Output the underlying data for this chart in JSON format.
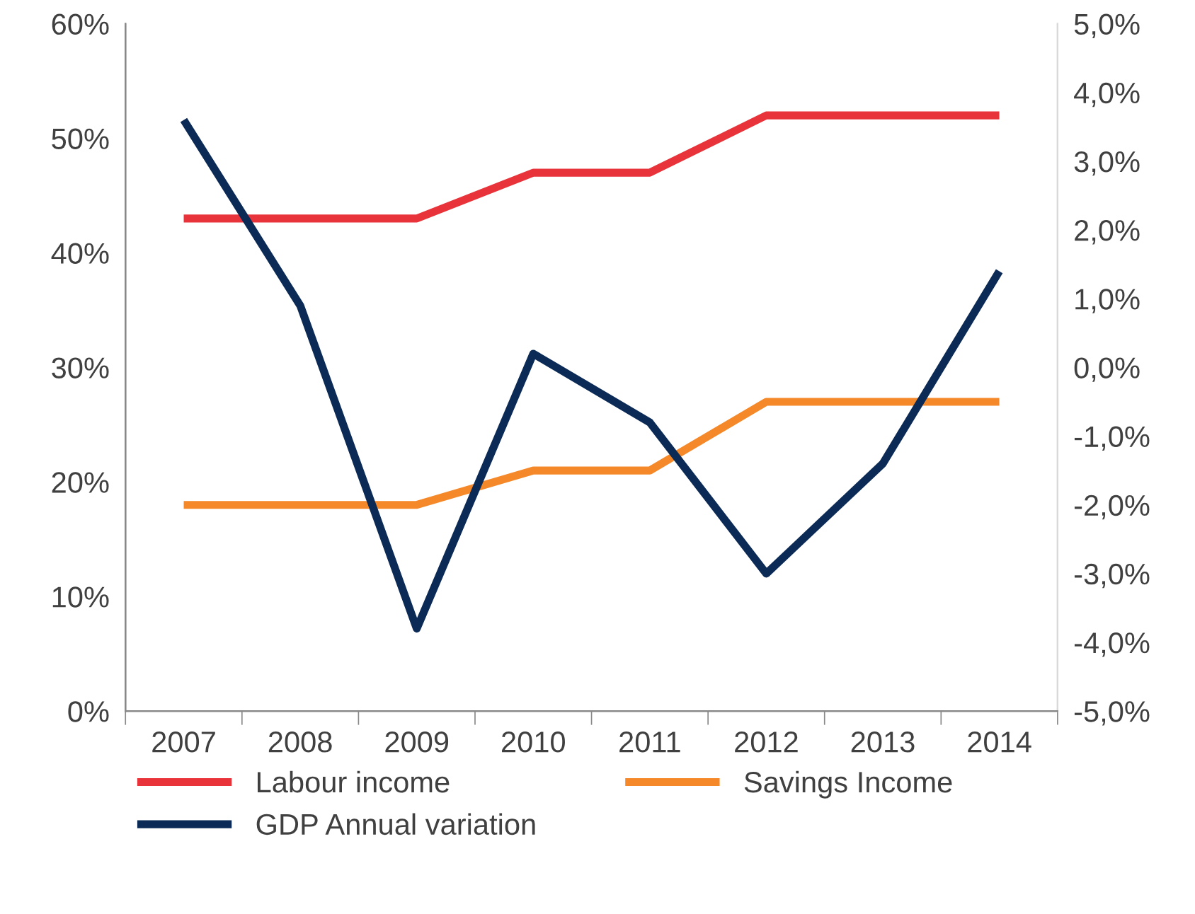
{
  "chart_data": {
    "type": "line",
    "categories": [
      "2007",
      "2008",
      "2009",
      "2010",
      "2011",
      "2012",
      "2013",
      "2014"
    ],
    "series": [
      {
        "name": "Labour income",
        "color": "#e8333a",
        "values": [
          43,
          43,
          43,
          47,
          47,
          52,
          52,
          52
        ]
      },
      {
        "name": "Savings Income",
        "color": "#f5892a",
        "values": [
          18,
          18,
          18,
          21,
          21,
          27,
          27,
          27
        ]
      },
      {
        "name": "GDP Annual variation",
        "color": "#0b2a55",
        "axis": "y2",
        "values": [
          3.6,
          0.9,
          -3.8,
          0.2,
          -0.8,
          -3.0,
          -1.4,
          1.4
        ]
      }
    ],
    "ylim": [
      0,
      60
    ],
    "yticks": [
      {
        "value": 0,
        "label": "0%"
      },
      {
        "value": 10,
        "label": "10%"
      },
      {
        "value": 20,
        "label": "20%"
      },
      {
        "value": 30,
        "label": "30%"
      },
      {
        "value": 40,
        "label": "40%"
      },
      {
        "value": 50,
        "label": "50%"
      },
      {
        "value": 60,
        "label": "60%"
      }
    ],
    "y2lim": [
      -5,
      5
    ],
    "y2ticks": [
      {
        "value": -5,
        "label": "-5,0%"
      },
      {
        "value": -4,
        "label": "-4,0%"
      },
      {
        "value": -3,
        "label": "-3,0%"
      },
      {
        "value": -2,
        "label": "-2,0%"
      },
      {
        "value": -1,
        "label": "-1,0%"
      },
      {
        "value": 0,
        "label": "0,0%"
      },
      {
        "value": 1,
        "label": "1,0%"
      },
      {
        "value": 2,
        "label": "2,0%"
      },
      {
        "value": 3,
        "label": "3,0%"
      },
      {
        "value": 4,
        "label": "4,0%"
      },
      {
        "value": 5,
        "label": "5,0%"
      }
    ],
    "grid": false,
    "legend": "bottom",
    "marker": "none",
    "line_style": "solid"
  }
}
